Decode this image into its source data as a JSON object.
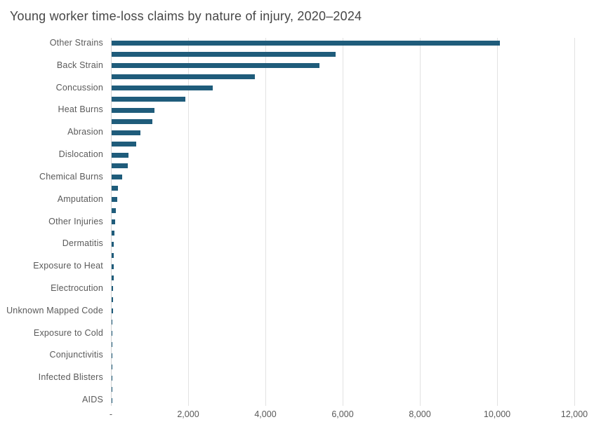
{
  "chart_data": {
    "type": "bar",
    "orientation": "horizontal",
    "title": "Young worker time-loss claims by nature of injury, 2020–2024",
    "xlabel": "",
    "ylabel": "",
    "xlim": [
      0,
      12000
    ],
    "grid": "vertical-only",
    "legend_position": "none",
    "x_axis": {
      "tick_labels": [
        "-",
        "2,000",
        "4,000",
        "6,000",
        "8,000",
        "10,000",
        "12,000"
      ],
      "tick_values": [
        0,
        2000,
        4000,
        6000,
        8000,
        10000,
        12000
      ]
    },
    "axis_note": "category labels shown for every other bar; unlabeled bars are intermediate categories",
    "categories": [
      "Other Strains",
      "",
      "Back Strain",
      "",
      "Concussion",
      "",
      "Heat Burns",
      "",
      "Abrasion",
      "",
      "Dislocation",
      "",
      "Chemical Burns",
      "",
      "Amputation",
      "",
      "Other Injuries",
      "",
      "Dermatitis",
      "",
      "Exposure to Heat",
      "",
      "Electrocution",
      "",
      "Unknown Mapped Code",
      "",
      "Exposure to Cold",
      "",
      "Conjunctivitis",
      "",
      "Infected Blisters",
      "",
      "AIDS"
    ],
    "values": [
      10050,
      5800,
      5380,
      3700,
      2620,
      1910,
      1100,
      1050,
      740,
      635,
      430,
      410,
      265,
      155,
      145,
      105,
      85,
      65,
      58,
      55,
      50,
      48,
      45,
      42,
      40,
      20,
      18,
      15,
      8,
      6,
      5,
      3,
      2
    ]
  },
  "colors": {
    "bar": "#1f5c7b",
    "gridline": "#e2e2e2",
    "zero_axis_line": "#d4d4d4",
    "title_text": "#474747",
    "category_text": "#5a5a5a",
    "tick_text": "#595959",
    "background": "#ffffff"
  }
}
